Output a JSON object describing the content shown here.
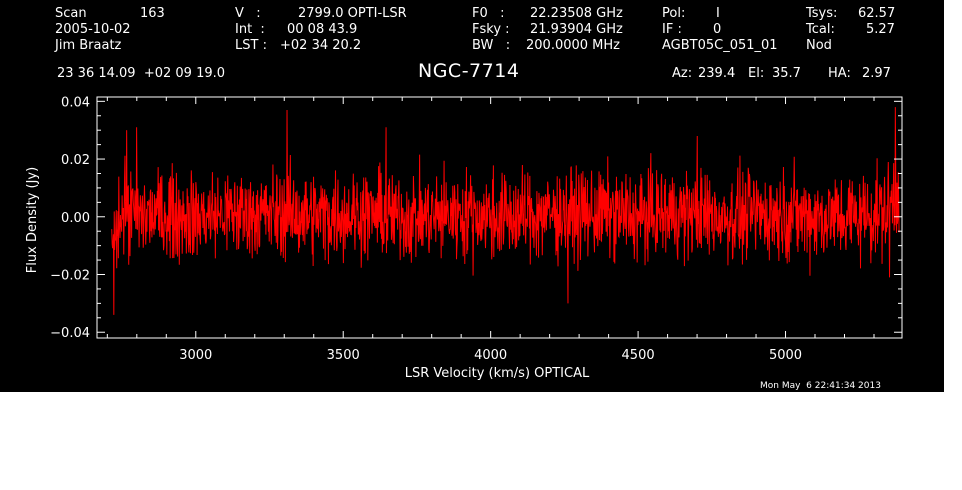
{
  "header": {
    "scan_label": "Scan",
    "scan_value": "163",
    "date": "2005-10-02",
    "observer": "Jim Braatz",
    "v_label": "V   :",
    "v_value": "2799.0 OPTI-LSR",
    "int_label": "Int  :",
    "int_value": "00 08 43.9",
    "lst_label": "LST :",
    "lst_value": "+02 34 20.2",
    "f0_label": "F0   :",
    "f0_value": "22.23508 GHz",
    "fsky_label": "Fsky :",
    "fsky_value": "21.93904 GHz",
    "bw_label": "BW   :",
    "bw_value": "200.0000 MHz",
    "pol_label": "Pol:",
    "pol_value": "I",
    "if_label": "IF :",
    "if_value": "0",
    "project": "AGBT05C_051_01",
    "tsys_label": "Tsys:",
    "tsys_value": "62.57",
    "tcal_label": "Tcal:",
    "tcal_value": "5.27",
    "mode": "Nod",
    "coords": "23 36 14.09  +02 09 19.0",
    "source": "NGC-7714",
    "az_label": "Az:",
    "az_value": "239.4",
    "el_label": "El:",
    "el_value": "35.7",
    "ha_label": "HA:",
    "ha_value": "2.97"
  },
  "timestamp": "Mon May  6 22:41:34 2013",
  "colors": {
    "background": "#000000",
    "axes": "#ffffff",
    "spectrum": "#ff0000",
    "page": "#ffffff"
  },
  "chart_data": {
    "type": "line",
    "title": "NGC-7714",
    "xlabel": "LSR Velocity (km/s) OPTICAL",
    "ylabel": "Flux Density (Jy)",
    "xlim": [
      2665,
      5395
    ],
    "ylim": [
      -0.042,
      0.0415
    ],
    "x_ticks": [
      3000,
      3500,
      4000,
      4500,
      5000
    ],
    "x_tick_labels": [
      "3000",
      "3500",
      "4000",
      "4500",
      "5000"
    ],
    "y_ticks": [
      -0.04,
      -0.02,
      0.0,
      0.02,
      0.04
    ],
    "y_tick_labels": [
      "−0.04",
      "−0.02",
      "0.00",
      "0.02",
      "0.04"
    ],
    "grid": false,
    "series": [
      {
        "color": "#ff0000",
        "x": [
          2715,
          2730,
          2745,
          2760,
          2780,
          2800,
          2900,
          3000,
          3100,
          3200,
          3300,
          3400,
          3500,
          3600,
          3700,
          3800,
          3900,
          4000,
          4100,
          4200,
          4300,
          4400,
          4500,
          4600,
          4700,
          4800,
          4900,
          5000,
          5100,
          5200,
          5300,
          5340,
          5360,
          5375,
          5385
        ],
        "y": [
          -0.012,
          -0.004,
          0.001,
          0.002,
          0.001,
          0.0,
          0.001,
          0.0,
          0.001,
          0.001,
          0.001,
          0.0,
          0.001,
          0.001,
          0.0,
          0.0,
          0.001,
          0.0,
          0.0,
          0.001,
          0.001,
          0.001,
          0.0,
          0.001,
          0.001,
          0.0,
          0.001,
          0.001,
          0.0,
          0.0,
          0.001,
          0.002,
          0.005,
          0.008,
          0.012
        ],
        "noise_rms": 0.0075,
        "peaks": [
          {
            "x": 2722,
            "y": -0.034
          },
          {
            "x": 2765,
            "y": 0.03
          },
          {
            "x": 2800,
            "y": 0.031
          },
          {
            "x": 3310,
            "y": 0.037
          },
          {
            "x": 3645,
            "y": 0.031
          },
          {
            "x": 4262,
            "y": -0.03
          },
          {
            "x": 4700,
            "y": 0.028
          },
          {
            "x": 5352,
            "y": -0.021
          },
          {
            "x": 5372,
            "y": 0.038
          }
        ]
      }
    ]
  }
}
